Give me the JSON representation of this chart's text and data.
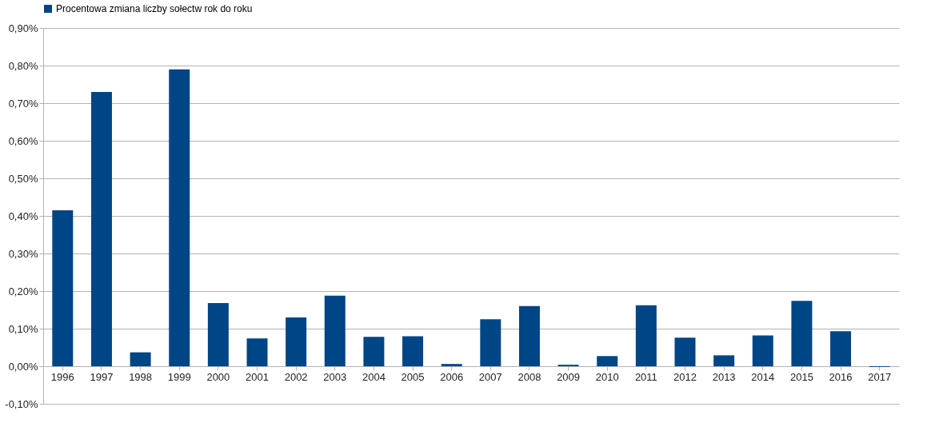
{
  "chart_data": {
    "type": "bar",
    "categories": [
      "1996",
      "1997",
      "1998",
      "1999",
      "2000",
      "2001",
      "2002",
      "2003",
      "2004",
      "2005",
      "2006",
      "2007",
      "2008",
      "2009",
      "2010",
      "2011",
      "2012",
      "2013",
      "2014",
      "2015",
      "2016",
      "2017"
    ],
    "series": [
      {
        "name": "Procentowa zmiana liczby sołectw rok do roku",
        "color": "#004586",
        "values": [
          0.415,
          0.73,
          0.037,
          0.79,
          0.168,
          0.074,
          0.13,
          0.188,
          0.078,
          0.08,
          0.006,
          0.125,
          0.16,
          0.004,
          0.027,
          0.162,
          0.076,
          0.029,
          0.082,
          0.174,
          0.093,
          -0.002
        ]
      }
    ],
    "ylim": [
      -0.1,
      0.9
    ],
    "yticks": [
      {
        "value": -0.1,
        "label": "-0,10%"
      },
      {
        "value": 0,
        "label": "0,00%"
      },
      {
        "value": 0.1,
        "label": "0,10%"
      },
      {
        "value": 0.2,
        "label": "0,20%"
      },
      {
        "value": 0.3,
        "label": "0,30%"
      },
      {
        "value": 0.4,
        "label": "0,40%"
      },
      {
        "value": 0.5,
        "label": "0,50%"
      },
      {
        "value": 0.6,
        "label": "0,60%"
      },
      {
        "value": 0.7,
        "label": "0,70%"
      },
      {
        "value": 0.8,
        "label": "0,80%"
      },
      {
        "value": 0.9,
        "label": "0,90%"
      }
    ],
    "grid": "y",
    "legend": "top"
  }
}
